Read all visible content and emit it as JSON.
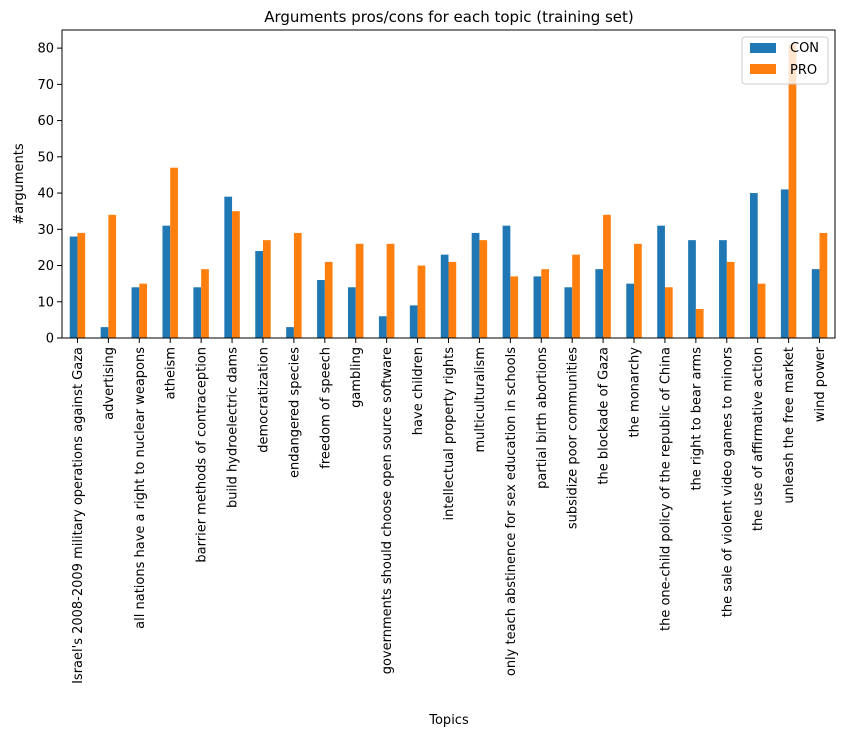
{
  "chart_data": {
    "type": "bar",
    "title": "Arguments pros/cons for each topic (training set)",
    "xlabel": "Topics",
    "ylabel": "#arguments",
    "ylim": [
      0,
      85
    ],
    "yticks": [
      0,
      10,
      20,
      30,
      40,
      50,
      60,
      70,
      80
    ],
    "grid": false,
    "legend_position": "top-right",
    "categories": [
      "Israel's 2008-2009 military operations against Gaza",
      "advertising",
      "all nations have a right to nuclear weapons",
      "atheism",
      "barrier methods of contraception",
      "build hydroelectric dams",
      "democratization",
      "endangered species",
      "freedom of speech",
      "gambling",
      "governments should choose open source software",
      "have children",
      "intellectual property rights",
      "multiculturalism",
      "only teach abstinence for sex education in schools",
      "partial birth abortions",
      "subsidize poor communities",
      "the blockade of Gaza",
      "the monarchy",
      "the one-child policy of the republic of China",
      "the right to bear arms",
      "the sale of violent video games to minors",
      "the use of affirmative action",
      "unleash the free market",
      "wind power"
    ],
    "series": [
      {
        "name": "CON",
        "color": "#1f77b4",
        "values": [
          28,
          3,
          14,
          31,
          14,
          39,
          24,
          3,
          16,
          14,
          6,
          9,
          23,
          29,
          31,
          17,
          14,
          19,
          15,
          31,
          27,
          27,
          40,
          41,
          19
        ]
      },
      {
        "name": "PRO",
        "color": "#ff7f0e",
        "values": [
          29,
          34,
          15,
          47,
          19,
          35,
          27,
          29,
          21,
          26,
          26,
          20,
          21,
          27,
          17,
          19,
          23,
          34,
          26,
          14,
          8,
          21,
          15,
          81,
          29
        ]
      }
    ]
  }
}
